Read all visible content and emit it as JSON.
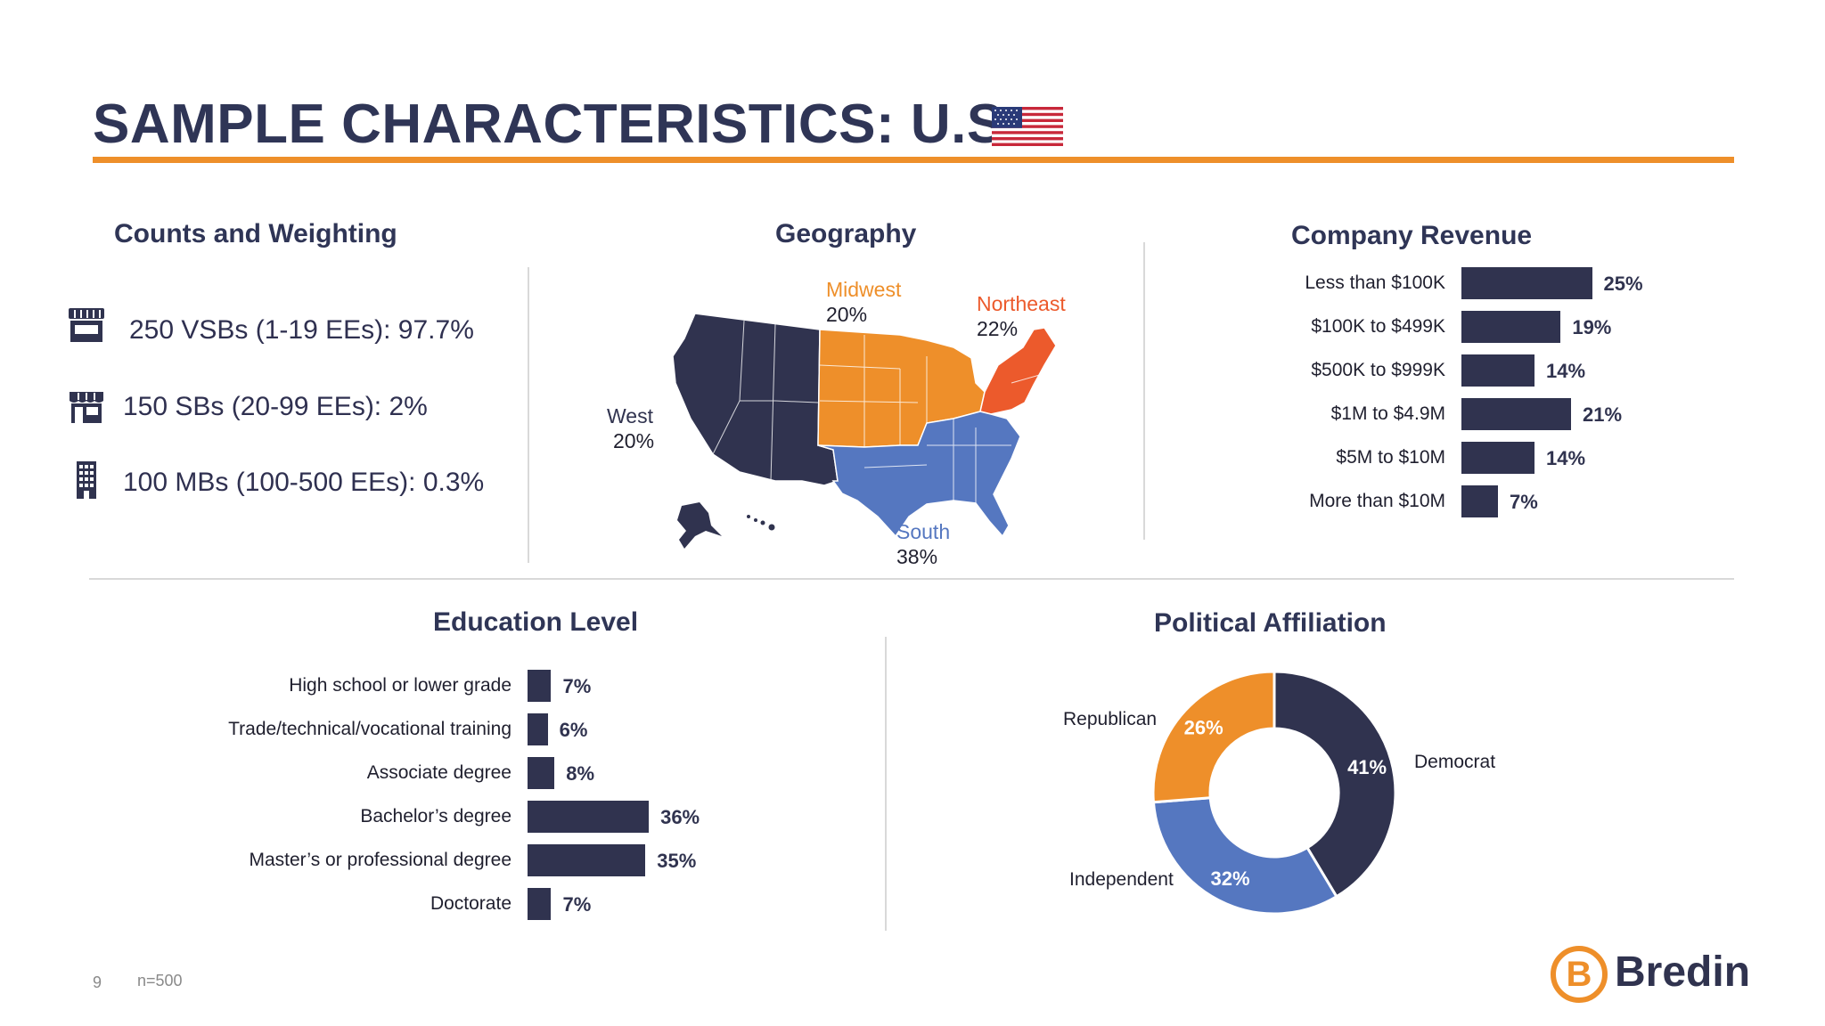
{
  "title": "SAMPLE CHARACTERISTICS: U.S.",
  "counts": {
    "heading": "Counts and Weighting",
    "items": [
      {
        "icon": "storefront-icon",
        "text": "250 VSBs (1-19 EEs): 97.7%"
      },
      {
        "icon": "shop-icon",
        "text": "150 SBs (20-99 EEs):  2%"
      },
      {
        "icon": "office-building-icon",
        "text": "100 MBs (100-500 EEs): 0.3%"
      }
    ]
  },
  "geography": {
    "heading": "Geography",
    "regions": [
      {
        "name": "West",
        "value": "20%",
        "color": "#30334f"
      },
      {
        "name": "Midwest",
        "value": "20%",
        "color": "#ee8f2a"
      },
      {
        "name": "Northeast",
        "value": "22%",
        "color": "#ec5a2c"
      },
      {
        "name": "South",
        "value": "38%",
        "color": "#5577c0"
      }
    ]
  },
  "colors": {
    "navy": "#30334f",
    "orange": "#ee8f2a",
    "red_orange": "#ec5a2c",
    "blue": "#5577c0"
  },
  "chart_data": [
    {
      "type": "bar",
      "orientation": "horizontal",
      "title": "Company Revenue",
      "categories": [
        "Less than $100K",
        "$100K to $499K",
        "$500K to $999K",
        "$1M to $4.9M",
        "$5M to $10M",
        "More than $10M"
      ],
      "values": [
        25,
        19,
        14,
        21,
        14,
        7
      ],
      "labels": [
        "25%",
        "19%",
        "14%",
        "21%",
        "14%",
        "7%"
      ],
      "color": "#30334f"
    },
    {
      "type": "bar",
      "orientation": "horizontal",
      "title": "Education Level",
      "categories": [
        "High school or lower grade",
        "Trade/technical/vocational training",
        "Associate degree",
        "Bachelor’s degree",
        "Master’s or professional degree",
        "Doctorate"
      ],
      "values": [
        7,
        6,
        8,
        36,
        35,
        7
      ],
      "labels": [
        "7%",
        "6%",
        "8%",
        "36%",
        "35%",
        "7%"
      ],
      "color": "#30334f"
    },
    {
      "type": "pie",
      "donut": true,
      "title": "Political Affiliation",
      "categories": [
        "Democrat",
        "Independent",
        "Republican"
      ],
      "values": [
        41,
        32,
        26
      ],
      "labels": [
        "41%",
        "32%",
        "26%"
      ],
      "colors": [
        "#30334f",
        "#5577c0",
        "#ee8f2a"
      ]
    }
  ],
  "footer": {
    "page": "9",
    "note": "n=500",
    "logo_letter": "B",
    "logo_text": "Bredin"
  }
}
